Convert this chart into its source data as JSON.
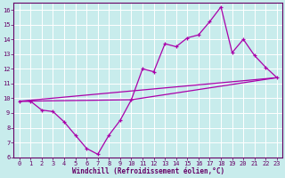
{
  "xlabel": "Windchill (Refroidissement éolien,°C)",
  "bg_color": "#c8ecec",
  "grid_color": "#aadddd",
  "line_color": "#aa00aa",
  "spine_color": "#660066",
  "tick_color": "#660066",
  "xlim": [
    -0.5,
    23.5
  ],
  "ylim": [
    6,
    16.5
  ],
  "xticks": [
    0,
    1,
    2,
    3,
    4,
    5,
    6,
    7,
    8,
    9,
    10,
    11,
    12,
    13,
    14,
    15,
    16,
    17,
    18,
    19,
    20,
    21,
    22,
    23
  ],
  "yticks": [
    6,
    7,
    8,
    9,
    10,
    11,
    12,
    13,
    14,
    15,
    16
  ],
  "line1_x": [
    0,
    1,
    2,
    3,
    4,
    5,
    6,
    7,
    8,
    9,
    10,
    11,
    12,
    13,
    14,
    15,
    16,
    17,
    18,
    19,
    20,
    21,
    22,
    23
  ],
  "line1_y": [
    9.8,
    9.8,
    9.2,
    9.1,
    8.4,
    7.5,
    6.6,
    6.2,
    7.5,
    8.5,
    9.9,
    12.0,
    11.8,
    13.7,
    13.5,
    14.1,
    14.3,
    15.2,
    16.2,
    13.1,
    14.0,
    12.9,
    12.1,
    11.4
  ],
  "line2_x": [
    0,
    23
  ],
  "line2_y": [
    9.8,
    11.4
  ],
  "line3_x": [
    0,
    10,
    23
  ],
  "line3_y": [
    9.8,
    9.9,
    11.4
  ],
  "tick_fontsize": 5,
  "xlabel_fontsize": 5.5
}
